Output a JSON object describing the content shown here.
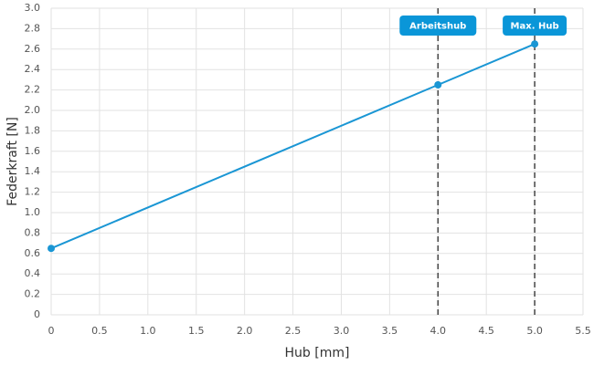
{
  "chart_data": {
    "type": "line",
    "xlabel": "Hub [mm]",
    "ylabel": "Federkraft [N]",
    "x": [
      0,
      4,
      5
    ],
    "series": [
      {
        "name": "Federkraft",
        "color": "#1a96d4",
        "values": [
          0.65,
          2.25,
          2.65
        ]
      }
    ],
    "xlim": [
      0,
      5.5
    ],
    "xticks": [
      0,
      0.5,
      {
        "value": 1,
        "label": "1.0"
      },
      1.5,
      {
        "value": 2,
        "label": "2.0"
      },
      2.5,
      {
        "value": 3,
        "label": "3.0"
      },
      3.5,
      {
        "value": 4,
        "label": "4.0"
      },
      4.5,
      {
        "value": 5,
        "label": "5.0"
      },
      5.5
    ],
    "ylim": [
      0,
      3
    ],
    "yticks": [
      0,
      0.2,
      0.4,
      0.6,
      0.8,
      {
        "value": 1,
        "label": "1.0"
      },
      1.2,
      1.4,
      1.6,
      1.8,
      {
        "value": 2,
        "label": "2.0"
      },
      2.2,
      2.4,
      2.6,
      2.8,
      {
        "value": 3,
        "label": "3.0"
      }
    ],
    "grid": true,
    "annotations": [
      {
        "x": 4,
        "label": "Arbeitshub",
        "color": "#0a96d8"
      },
      {
        "x": 5,
        "label": "Max. Hub",
        "color": "#0a96d8"
      }
    ]
  }
}
